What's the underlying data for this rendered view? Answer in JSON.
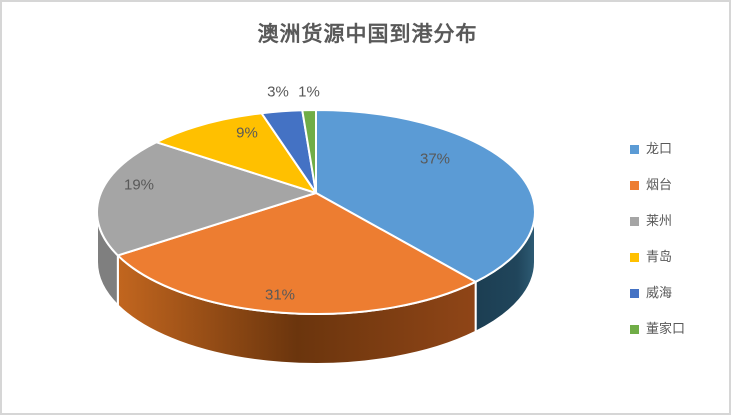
{
  "chart_data": {
    "type": "pie",
    "style": "3d-pie",
    "title": "澳洲货源中国到港分布",
    "categories": [
      "龙口",
      "烟台",
      "莱州",
      "青岛",
      "威海",
      "董家口"
    ],
    "values": [
      37,
      31,
      19,
      9,
      3,
      1
    ],
    "total": 100,
    "unit": "%",
    "data_labels": [
      "37%",
      "31%",
      "19%",
      "9%",
      "3%",
      "1%"
    ],
    "colors": [
      "#5B9BD5",
      "#ED7D31",
      "#A5A5A5",
      "#FFC000",
      "#4472C4",
      "#70AD47"
    ],
    "start_angle_deg": 0,
    "direction": "clockwise",
    "legend_position": "right",
    "label_color": "#595959",
    "title_color": "#595959"
  },
  "legend": {
    "items": [
      {
        "label": "龙口",
        "color": "#5B9BD5"
      },
      {
        "label": "烟台",
        "color": "#ED7D31"
      },
      {
        "label": "莱州",
        "color": "#A5A5A5"
      },
      {
        "label": "青岛",
        "color": "#FFC000"
      },
      {
        "label": "威海",
        "color": "#4472C4"
      },
      {
        "label": "董家口",
        "color": "#70AD47"
      }
    ]
  }
}
